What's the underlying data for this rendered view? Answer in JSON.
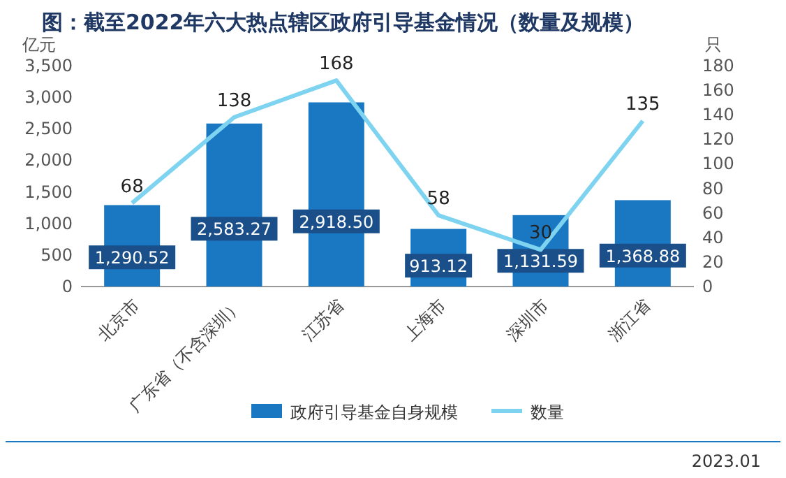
{
  "chart_data": {
    "type": "bar",
    "title": "图：截至2022年六大热点辖区政府引导基金情况（数量及规模）",
    "categories": [
      "北京市",
      "广东省（不含深圳）",
      "江苏省",
      "上海市",
      "深圳市",
      "浙江省"
    ],
    "series": [
      {
        "name": "政府引导基金自身规模",
        "color": "#1a78c2",
        "values": [
          1290.52,
          2583.27,
          2918.5,
          913.12,
          1131.59,
          1368.88
        ],
        "value_labels": [
          "1,290.52",
          "2,583.27",
          "2,918.50",
          "913.12",
          "1,131.59",
          "1,368.88"
        ]
      },
      {
        "name": "数量",
        "type": "line",
        "axis": "y2",
        "color": "#7dd3f0",
        "values": [
          68,
          138,
          168,
          58,
          30,
          135
        ]
      }
    ],
    "ylabel": "亿元",
    "y2label": "只",
    "ylim": [
      0,
      3500
    ],
    "yticks": [
      0,
      {
        "value": 500,
        "label": "500"
      },
      {
        "value": 1000,
        "label": "1,000"
      },
      {
        "value": 1500,
        "label": "1,500"
      },
      {
        "value": 2000,
        "label": "2,000"
      },
      {
        "value": 2500,
        "label": "2,500"
      },
      {
        "value": 3000,
        "label": "3,000"
      },
      {
        "value": 3500,
        "label": "3,500"
      }
    ],
    "y2lim": [
      0,
      180
    ],
    "y2ticks": [
      0,
      20,
      40,
      60,
      80,
      100,
      120,
      140,
      160,
      180
    ],
    "data_labels": true,
    "legend": "bottom",
    "grid": false,
    "annotations": [
      "2023.01"
    ]
  }
}
